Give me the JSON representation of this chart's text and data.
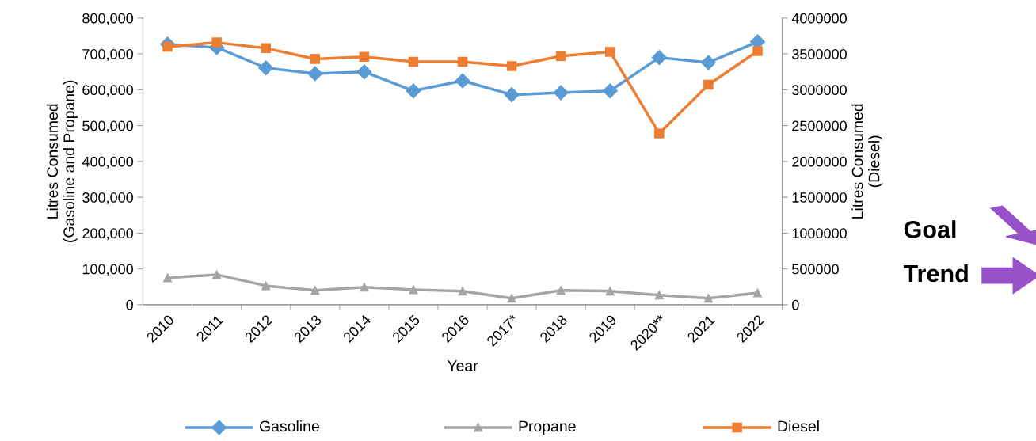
{
  "chart_data": {
    "type": "line",
    "xlabel": "Year",
    "ylabel": "Litres Consumed\n(Gasoline and Propane)",
    "y2label": "Litres Consumed\n(Diesel)",
    "categories": [
      "2010",
      "2011",
      "2012",
      "2013",
      "2014",
      "2015",
      "2016",
      "2017*",
      "2018",
      "2019",
      "2020**",
      "2021",
      "2022"
    ],
    "series": [
      {
        "name": "Gasoline",
        "color": "#5b9bd5",
        "marker": "diamond",
        "values": [
          727000,
          718000,
          661000,
          645000,
          650000,
          597000,
          625000,
          586000,
          592000,
          597000,
          690000,
          676000,
          734000
        ]
      },
      {
        "name": "Propane",
        "color": "#a5a5a5",
        "marker": "triangle",
        "values": [
          75000,
          84000,
          53000,
          40000,
          49000,
          42000,
          38000,
          18000,
          40000,
          38000,
          27000,
          18000,
          33000
        ]
      },
      {
        "name": "Diesel",
        "color": "#ed7d31",
        "marker": "square",
        "axis": "y2",
        "values": [
          3600000,
          3660000,
          3580000,
          3430000,
          3460000,
          3390000,
          3390000,
          3330000,
          3470000,
          3530000,
          2390000,
          3070000,
          3540000
        ]
      }
    ],
    "ylim": [
      0,
      800000
    ],
    "yticks": [
      {
        "value": 0,
        "label": "0"
      },
      {
        "value": 100000,
        "label": "100,000"
      },
      {
        "value": 200000,
        "label": "200,000"
      },
      {
        "value": 300000,
        "label": "300,000"
      },
      {
        "value": 400000,
        "label": "400,000"
      },
      {
        "value": 500000,
        "label": "500,000"
      },
      {
        "value": 600000,
        "label": "600,000"
      },
      {
        "value": 700000,
        "label": "700,000"
      },
      {
        "value": 800000,
        "label": "800,000"
      }
    ],
    "y2lim": [
      0,
      4000000
    ],
    "y2ticks": [
      0,
      500000,
      1000000,
      1500000,
      2000000,
      2500000,
      3000000,
      3500000,
      4000000
    ],
    "annotations": [
      "Goal",
      "Trend"
    ],
    "grid": false,
    "legend": "bottom",
    "line_style": "solid"
  }
}
